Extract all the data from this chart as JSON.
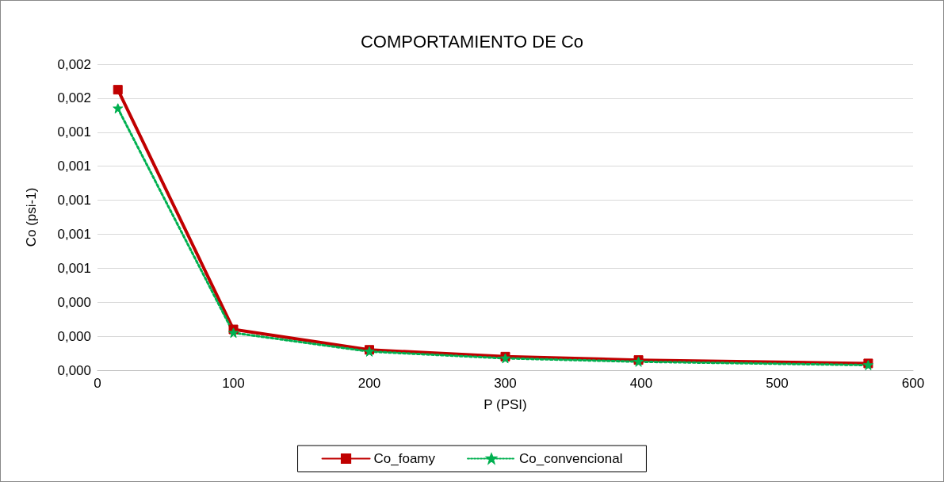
{
  "chart_data": {
    "type": "line",
    "title": "COMPORTAMIENTO DE Co",
    "xlabel": "P (PSI)",
    "ylabel": "Co (psi-1)",
    "xlim": [
      0,
      600
    ],
    "xticks": [
      0,
      100,
      200,
      300,
      400,
      500,
      600
    ],
    "ylim": [
      0,
      0.0018
    ],
    "yticks": [
      {
        "value": 0,
        "label": "0,000"
      },
      {
        "value": 0.0002,
        "label": "0,000"
      },
      {
        "value": 0.0004,
        "label": "0,000"
      },
      {
        "value": 0.0006,
        "label": "0,001"
      },
      {
        "value": 0.0008,
        "label": "0,001"
      },
      {
        "value": 0.001,
        "label": "0,001"
      },
      {
        "value": 0.0012,
        "label": "0,001"
      },
      {
        "value": 0.0014,
        "label": "0,001"
      },
      {
        "value": 0.0016,
        "label": "0,002"
      },
      {
        "value": 0.0018,
        "label": "0,002"
      }
    ],
    "grid": "y",
    "legend": "bottom",
    "series": [
      {
        "name": "Co_foamy",
        "color": "#c00000",
        "marker": "square",
        "line_style": "solid",
        "x": [
          15,
          100,
          200,
          300,
          398,
          567
        ],
        "values": [
          0.00165,
          0.00024,
          0.00012,
          8e-05,
          6e-05,
          4e-05
        ]
      },
      {
        "name": "Co_convencional",
        "color": "#00b050",
        "marker": "star",
        "line_style": "dotted",
        "x": [
          15,
          100,
          200,
          300,
          398,
          567
        ],
        "values": [
          0.00154,
          0.00022,
          0.00011,
          7e-05,
          5e-05,
          3e-05
        ]
      }
    ]
  }
}
